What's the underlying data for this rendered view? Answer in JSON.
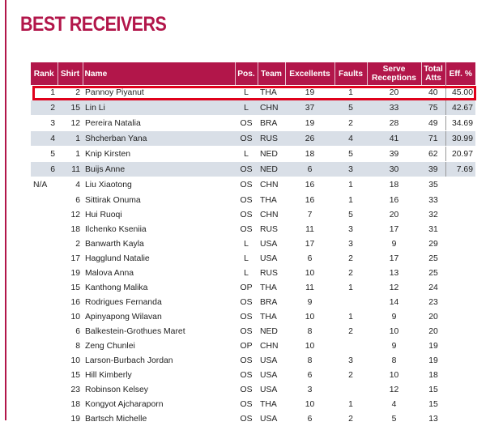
{
  "title": "BEST RECEIVERS",
  "columns": [
    "Rank",
    "Shirt",
    "Name",
    "Pos.",
    "Team",
    "Excellents",
    "Faults",
    "Serve\nReceptions",
    "Total\nAtts",
    "Eff. %"
  ],
  "rows": [
    {
      "rank": "1",
      "shirt": "2",
      "name": "Pannoy Piyanut",
      "pos": "L",
      "team": "THA",
      "exc": "19",
      "faults": "1",
      "serve": "20",
      "total": "40",
      "eff": "45.00",
      "shaded": false,
      "highlight": true
    },
    {
      "rank": "2",
      "shirt": "15",
      "name": "Lin Li",
      "pos": "L",
      "team": "CHN",
      "exc": "37",
      "faults": "5",
      "serve": "33",
      "total": "75",
      "eff": "42.67",
      "shaded": true
    },
    {
      "rank": "3",
      "shirt": "12",
      "name": "Pereira Natalia",
      "pos": "OS",
      "team": "BRA",
      "exc": "19",
      "faults": "2",
      "serve": "28",
      "total": "49",
      "eff": "34.69",
      "shaded": false
    },
    {
      "rank": "4",
      "shirt": "1",
      "name": "Shcherban Yana",
      "pos": "OS",
      "team": "RUS",
      "exc": "26",
      "faults": "4",
      "serve": "41",
      "total": "71",
      "eff": "30.99",
      "shaded": true
    },
    {
      "rank": "5",
      "shirt": "1",
      "name": "Knip Kirsten",
      "pos": "L",
      "team": "NED",
      "exc": "18",
      "faults": "5",
      "serve": "39",
      "total": "62",
      "eff": "20.97",
      "shaded": false
    },
    {
      "rank": "6",
      "shirt": "11",
      "name": "Buijs Anne",
      "pos": "OS",
      "team": "NED",
      "exc": "6",
      "faults": "3",
      "serve": "30",
      "total": "39",
      "eff": "7.69",
      "shaded": true
    },
    {
      "rank": "N/A",
      "shirt": "4",
      "name": "Liu Xiaotong",
      "pos": "OS",
      "team": "CHN",
      "exc": "16",
      "faults": "1",
      "serve": "18",
      "total": "35",
      "eff": "",
      "shaded": false
    },
    {
      "rank": "",
      "shirt": "6",
      "name": "Sittirak Onuma",
      "pos": "OS",
      "team": "THA",
      "exc": "16",
      "faults": "1",
      "serve": "16",
      "total": "33",
      "eff": "",
      "shaded": false
    },
    {
      "rank": "",
      "shirt": "12",
      "name": "Hui Ruoqi",
      "pos": "OS",
      "team": "CHN",
      "exc": "7",
      "faults": "5",
      "serve": "20",
      "total": "32",
      "eff": "",
      "shaded": false
    },
    {
      "rank": "",
      "shirt": "18",
      "name": "Ilchenko Kseniia",
      "pos": "OS",
      "team": "RUS",
      "exc": "11",
      "faults": "3",
      "serve": "17",
      "total": "31",
      "eff": "",
      "shaded": false
    },
    {
      "rank": "",
      "shirt": "2",
      "name": "Banwarth Kayla",
      "pos": "L",
      "team": "USA",
      "exc": "17",
      "faults": "3",
      "serve": "9",
      "total": "29",
      "eff": "",
      "shaded": false
    },
    {
      "rank": "",
      "shirt": "17",
      "name": "Hagglund Natalie",
      "pos": "L",
      "team": "USA",
      "exc": "6",
      "faults": "2",
      "serve": "17",
      "total": "25",
      "eff": "",
      "shaded": false
    },
    {
      "rank": "",
      "shirt": "19",
      "name": "Malova Anna",
      "pos": "L",
      "team": "RUS",
      "exc": "10",
      "faults": "2",
      "serve": "13",
      "total": "25",
      "eff": "",
      "shaded": false
    },
    {
      "rank": "",
      "shirt": "15",
      "name": "Kanthong Malika",
      "pos": "OP",
      "team": "THA",
      "exc": "11",
      "faults": "1",
      "serve": "12",
      "total": "24",
      "eff": "",
      "shaded": false
    },
    {
      "rank": "",
      "shirt": "16",
      "name": "Rodrigues Fernanda",
      "pos": "OS",
      "team": "BRA",
      "exc": "9",
      "faults": "",
      "serve": "14",
      "total": "23",
      "eff": "",
      "shaded": false
    },
    {
      "rank": "",
      "shirt": "10",
      "name": "Apinyapong Wilavan",
      "pos": "OS",
      "team": "THA",
      "exc": "10",
      "faults": "1",
      "serve": "9",
      "total": "20",
      "eff": "",
      "shaded": false
    },
    {
      "rank": "",
      "shirt": "6",
      "name": "Balkestein-Grothues Maret",
      "pos": "OS",
      "team": "NED",
      "exc": "8",
      "faults": "2",
      "serve": "10",
      "total": "20",
      "eff": "",
      "shaded": false
    },
    {
      "rank": "",
      "shirt": "8",
      "name": "Zeng Chunlei",
      "pos": "OP",
      "team": "CHN",
      "exc": "10",
      "faults": "",
      "serve": "9",
      "total": "19",
      "eff": "",
      "shaded": false
    },
    {
      "rank": "",
      "shirt": "10",
      "name": "Larson-Burbach Jordan",
      "pos": "OS",
      "team": "USA",
      "exc": "8",
      "faults": "3",
      "serve": "8",
      "total": "19",
      "eff": "",
      "shaded": false
    },
    {
      "rank": "",
      "shirt": "15",
      "name": "Hill Kimberly",
      "pos": "OS",
      "team": "USA",
      "exc": "6",
      "faults": "2",
      "serve": "10",
      "total": "18",
      "eff": "",
      "shaded": false
    },
    {
      "rank": "",
      "shirt": "23",
      "name": "Robinson Kelsey",
      "pos": "OS",
      "team": "USA",
      "exc": "3",
      "faults": "",
      "serve": "12",
      "total": "15",
      "eff": "",
      "shaded": false
    },
    {
      "rank": "",
      "shirt": "18",
      "name": "Kongyot Ajcharaporn",
      "pos": "OS",
      "team": "THA",
      "exc": "10",
      "faults": "1",
      "serve": "4",
      "total": "15",
      "eff": "",
      "shaded": false
    },
    {
      "rank": "",
      "shirt": "19",
      "name": "Bartsch Michelle",
      "pos": "OS",
      "team": "USA",
      "exc": "6",
      "faults": "2",
      "serve": "5",
      "total": "13",
      "eff": "",
      "shaded": false
    }
  ],
  "colors": {
    "accent": "#b2164a",
    "shaded_row": "#d9dfe7",
    "highlight_border": "#e0001b"
  }
}
